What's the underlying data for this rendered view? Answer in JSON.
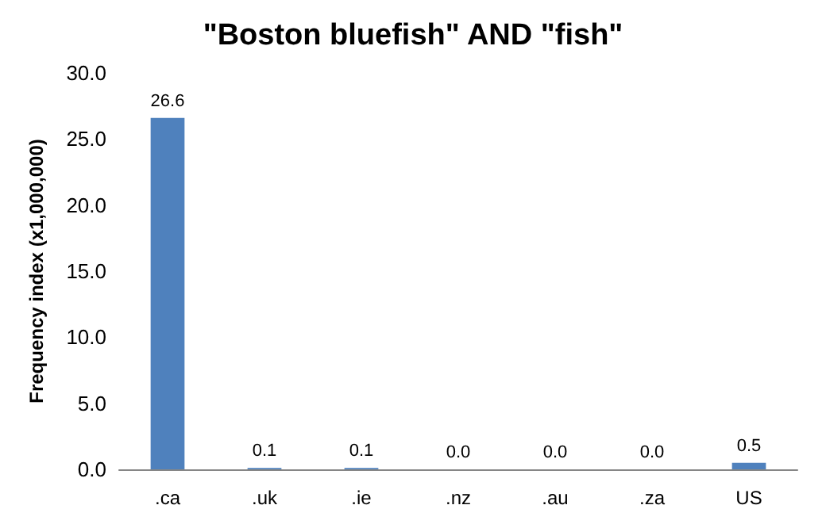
{
  "chart_data": {
    "type": "bar",
    "title": "\"Boston bluefish\" AND \"fish\"",
    "ylabel": "Frequency index (x1,000,000)",
    "categories": [
      ".ca",
      ".uk",
      ".ie",
      ".nz",
      ".au",
      ".za",
      "US"
    ],
    "values": [
      26.6,
      0.1,
      0.1,
      0.0,
      0.0,
      0.0,
      0.5
    ],
    "value_labels": [
      "26.6",
      "0.1",
      "0.1",
      "0.0",
      "0.0",
      "0.0",
      "0.5"
    ],
    "color": "#4f81bd",
    "ylim": [
      0,
      30
    ],
    "yticks": [
      {
        "value": 0,
        "label": "0.0"
      },
      {
        "value": 5,
        "label": "5.0"
      },
      {
        "value": 10,
        "label": "10.0"
      },
      {
        "value": 15,
        "label": "15.0"
      },
      {
        "value": 20,
        "label": "20.0"
      },
      {
        "value": 25,
        "label": "25.0"
      },
      {
        "value": 30,
        "label": "30.0"
      }
    ],
    "grid": false
  }
}
